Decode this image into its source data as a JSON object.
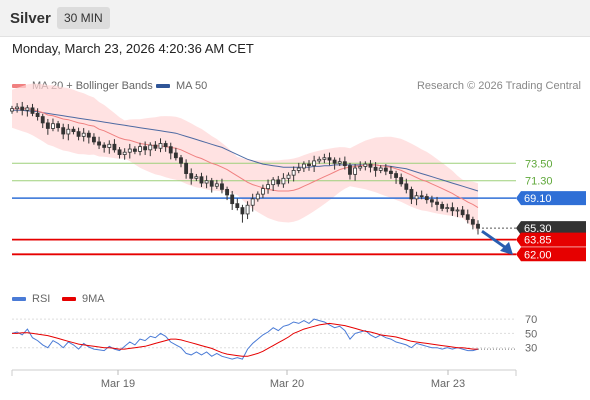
{
  "header": {
    "title": "Silver",
    "timeframe": "30 MIN",
    "datetime": "Monday, March 23, 2026 4:20:36 AM CET"
  },
  "legend": {
    "bollinger_label": "MA 20 + Bollinger Bands",
    "ma50_label": "MA 50",
    "copyright": "Research © 2026 Trading Central"
  },
  "rsi_legend": {
    "rsi_label": "RSI",
    "ma_label": "9MA"
  },
  "colors": {
    "bollinger": "#f08080",
    "band_fill": "#ffd6d6",
    "ma50": "#2f5597",
    "up_candle": "#ffffff",
    "down_candle": "#ffffff",
    "candle_edge": "#333333",
    "resistance": "#9dd07a",
    "pivot": "#2f6fd6",
    "support": "#e60000",
    "last_price": "#333333",
    "rsi": "#4a7bd6",
    "rsi_ma": "#e60000"
  },
  "chart_data": [
    {
      "type": "candlestick",
      "title": "Silver",
      "x_tick_labels": [
        "Mar 19",
        "Mar 20",
        "Mar 23"
      ],
      "y_range": [
        58.5,
        82.0
      ],
      "levels": [
        {
          "label": "73.50",
          "value": 73.5,
          "kind": "resistance"
        },
        {
          "label": "71.30",
          "value": 71.3,
          "kind": "resistance"
        },
        {
          "label": "69.10",
          "value": 69.1,
          "kind": "pivot"
        },
        {
          "label": "65.30",
          "value": 65.3,
          "kind": "last"
        },
        {
          "label": "63.85",
          "value": 63.85,
          "kind": "support"
        },
        {
          "label": "62.00",
          "value": 62.0,
          "kind": "support"
        }
      ],
      "closes": [
        80.4,
        80.6,
        80.2,
        80.5,
        79.8,
        79.4,
        78.6,
        77.9,
        78.5,
        78.0,
        77.2,
        77.8,
        77.5,
        76.9,
        77.3,
        76.8,
        76.2,
        75.8,
        75.5,
        75.9,
        75.2,
        74.6,
        74.9,
        75.3,
        75.0,
        75.6,
        75.2,
        75.8,
        75.4,
        76.0,
        75.6,
        74.8,
        74.2,
        73.5,
        72.2,
        71.6,
        71.8,
        71.0,
        71.3,
        70.6,
        70.9,
        70.2,
        69.5,
        68.4,
        67.9,
        67.1,
        68.2,
        69.0,
        69.6,
        70.3,
        70.8,
        71.4,
        70.9,
        71.6,
        72.0,
        72.6,
        72.9,
        73.4,
        73.2,
        73.8,
        74.0,
        74.2,
        73.9,
        73.5,
        73.7,
        73.2,
        72.1,
        72.9,
        73.1,
        73.4,
        73.0,
        72.6,
        72.9,
        72.5,
        72.2,
        71.7,
        70.9,
        70.2,
        69.0,
        69.4,
        69.3,
        68.9,
        68.6,
        68.3,
        67.8,
        67.9,
        67.5,
        67.6,
        67.0,
        66.4,
        65.8,
        65.3
      ],
      "ma20": [
        80.4,
        80.4,
        80.4,
        80.4,
        80.3,
        80.1,
        79.9,
        79.6,
        79.5,
        79.3,
        79.1,
        79.0,
        78.8,
        78.6,
        78.5,
        78.3,
        78.2,
        77.8,
        77.6,
        77.3,
        77.0,
        76.7,
        76.5,
        76.4,
        76.2,
        76.0,
        75.9,
        75.8,
        75.7,
        75.7,
        75.6,
        75.5,
        75.4,
        75.2,
        74.9,
        74.6,
        74.3,
        74.1,
        73.8,
        73.5,
        73.3,
        73.0,
        72.7,
        72.3,
        71.9,
        71.5,
        71.1,
        70.8,
        70.6,
        70.4,
        70.2,
        70.1,
        70.0,
        70.0,
        70.0,
        70.1,
        70.3,
        70.6,
        70.9,
        71.2,
        71.5,
        71.8,
        72.1,
        72.4,
        72.7,
        72.9,
        73.0,
        73.1,
        73.2,
        73.3,
        73.3,
        73.3,
        73.2,
        73.1,
        73.0,
        72.8,
        72.6,
        72.3,
        72.0,
        71.7,
        71.4,
        71.2,
        70.9,
        70.6,
        70.3,
        70.0,
        69.7,
        69.3,
        69.0,
        68.6,
        68.3,
        67.9
      ],
      "ma50": [
        80.2,
        80.2,
        80.2,
        80.1,
        80.1,
        80.0,
        79.9,
        79.8,
        79.7,
        79.6,
        79.5,
        79.4,
        79.3,
        79.2,
        79.1,
        79.0,
        78.9,
        78.8,
        78.7,
        78.6,
        78.5,
        78.4,
        78.3,
        78.2,
        78.1,
        78.0,
        77.9,
        77.8,
        77.7,
        77.6,
        77.5,
        77.4,
        77.3,
        77.1,
        76.9,
        76.7,
        76.5,
        76.3,
        76.1,
        75.9,
        75.7,
        75.5,
        75.2,
        74.9,
        74.6,
        74.3,
        74.0,
        73.8,
        73.6,
        73.4,
        73.3,
        73.2,
        73.1,
        73.0,
        73.0,
        73.0,
        73.0,
        73.0,
        73.0,
        73.1,
        73.1,
        73.2,
        73.2,
        73.3,
        73.3,
        73.3,
        73.3,
        73.3,
        73.3,
        73.3,
        73.3,
        73.3,
        73.2,
        73.2,
        73.1,
        73.0,
        72.9,
        72.8,
        72.6,
        72.4,
        72.2,
        72.0,
        71.8,
        71.6,
        71.4,
        71.2,
        71.0,
        70.8,
        70.6,
        70.4,
        70.2,
        70.0
      ]
    },
    {
      "type": "line",
      "title": "RSI",
      "y_ticks": [
        70,
        50,
        30
      ],
      "y_range": [
        10,
        80
      ],
      "series": [
        {
          "name": "RSI",
          "values": [
            50,
            52,
            48,
            56,
            44,
            40,
            34,
            30,
            40,
            36,
            30,
            38,
            34,
            28,
            36,
            31,
            28,
            27,
            26,
            32,
            28,
            26,
            32,
            38,
            34,
            42,
            40,
            46,
            44,
            50,
            46,
            38,
            34,
            30,
            22,
            20,
            24,
            20,
            24,
            18,
            22,
            18,
            16,
            14,
            16,
            14,
            28,
            36,
            42,
            48,
            52,
            58,
            54,
            60,
            62,
            66,
            64,
            68,
            64,
            70,
            68,
            66,
            62,
            58,
            60,
            54,
            42,
            50,
            52,
            54,
            48,
            44,
            48,
            44,
            42,
            38,
            36,
            34,
            30,
            36,
            34,
            32,
            30,
            30,
            28,
            30,
            28,
            30,
            28,
            26,
            26,
            28
          ]
        },
        {
          "name": "9MA",
          "values": [
            50,
            50,
            51,
            51,
            50,
            49,
            48,
            47,
            45,
            43,
            41,
            39,
            37,
            35,
            34,
            33,
            32,
            31,
            30,
            30,
            29,
            28,
            28,
            29,
            30,
            31,
            32,
            34,
            36,
            38,
            40,
            42,
            42,
            41,
            39,
            37,
            35,
            33,
            31,
            29,
            26,
            23,
            21,
            20,
            19,
            18,
            18,
            20,
            22,
            25,
            29,
            33,
            37,
            41,
            45,
            50,
            53,
            56,
            58,
            60,
            62,
            63,
            64,
            63,
            62,
            61,
            59,
            57,
            55,
            53,
            52,
            50,
            48,
            47,
            46,
            45,
            43,
            41,
            39,
            38,
            37,
            36,
            35,
            34,
            33,
            32,
            31,
            30,
            30,
            29,
            28,
            28
          ]
        }
      ]
    }
  ]
}
